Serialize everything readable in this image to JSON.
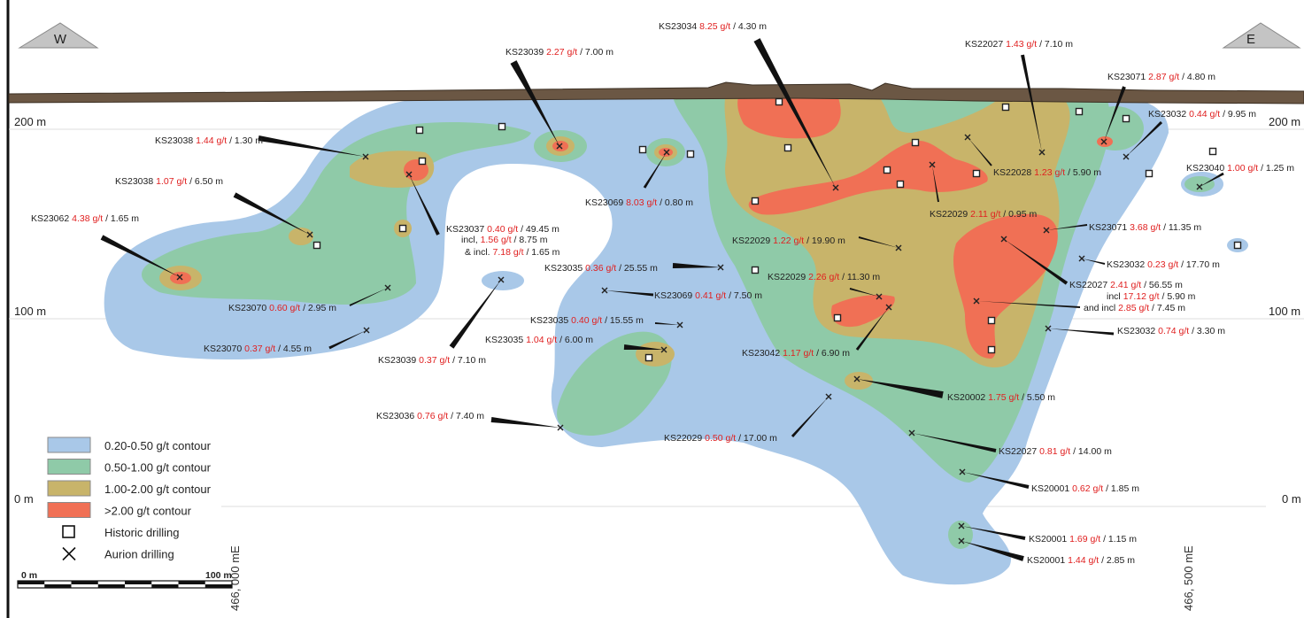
{
  "direction": {
    "west": "W",
    "east": "E"
  },
  "elevation_labels": {
    "top": "200 m",
    "mid": "100 m",
    "bottom": "0 m"
  },
  "eastings": {
    "left": "466, 000 mE",
    "right": "466, 500 mE"
  },
  "scale_bar": {
    "start": "0 m",
    "end": "100 m"
  },
  "legend": [
    {
      "label": "0.20-0.50 g/t contour",
      "color": "#a9c8e8",
      "kind": "swatch"
    },
    {
      "label": "0.50-1.00 g/t contour",
      "color": "#8fcaa8",
      "kind": "swatch"
    },
    {
      "label": "1.00-2.00 g/t contour",
      "color": "#c8b46a",
      "kind": "swatch"
    },
    {
      "label": ">2.00 g/t contour",
      "color": "#f07055",
      "kind": "swatch"
    },
    {
      "label": "Historic drilling",
      "color": "",
      "kind": "square"
    },
    {
      "label": "Aurion drilling",
      "color": "",
      "kind": "cross"
    }
  ],
  "colors": {
    "grade": "#e02020",
    "text": "#222222",
    "surface": "#6b5744",
    "blue": "#a9c8e8",
    "green": "#8fcaa8",
    "yellow": "#c8b46a",
    "red": "#f07055"
  },
  "intercepts": [
    {
      "hole": "KS23034",
      "grade": "8.25 g/t",
      "width": "/ 4.30 m"
    },
    {
      "hole": "KS22027",
      "grade": "1.43 g/t",
      "width": "/ 7.10 m"
    },
    {
      "hole": "KS23039",
      "grade": "2.27 g/t",
      "width": "/ 7.00 m"
    },
    {
      "hole": "KS23071",
      "grade": "2.87 g/t",
      "width": "/ 4.80 m"
    },
    {
      "hole": "KS23032",
      "grade": "0.44 g/t",
      "width": "/ 9.95 m"
    },
    {
      "hole": "KS23038",
      "grade": "1.44 g/t",
      "width": "/ 1.30 m"
    },
    {
      "hole": "KS22028",
      "grade": "1.23 g/t",
      "width": "/ 5.90 m"
    },
    {
      "hole": "KS23040",
      "grade": "1.00 g/t",
      "width": "/ 1.25 m"
    },
    {
      "hole": "KS23038",
      "grade": "1.07 g/t",
      "width": "/ 6.50 m"
    },
    {
      "hole": "KS23069",
      "grade": "8.03 g/t",
      "width": "/ 0.80 m"
    },
    {
      "hole": "KS22029",
      "grade": "2.11 g/t",
      "width": "/ 0.95 m"
    },
    {
      "hole": "KS23062",
      "grade": "4.38 g/t",
      "width": "/ 1.65 m"
    },
    {
      "hole": "KS23037",
      "grade": "0.40 g/t",
      "width": "/ 49.45 m"
    },
    {
      "hole": "incl,",
      "grade": "1.56 g/t",
      "width": "/ 8.75 m"
    },
    {
      "hole": "& incl.",
      "grade": "7.18 g/t",
      "width": "/ 1.65 m"
    },
    {
      "hole": "KS22029",
      "grade": "1.22 g/t",
      "width": "/ 19.90 m"
    },
    {
      "hole": "KS23071",
      "grade": "3.68 g/t",
      "width": "/ 11.35 m"
    },
    {
      "hole": "KS23032",
      "grade": "0.23 g/t",
      "width": "/ 17.70 m"
    },
    {
      "hole": "KS23035",
      "grade": "0.36 g/t",
      "width": "/ 25.55 m"
    },
    {
      "hole": "KS22029",
      "grade": "2.26 g/t",
      "width": "/ 11.30 m"
    },
    {
      "hole": "KS22027",
      "grade": "2.41 g/t",
      "width": "/ 56.55 m"
    },
    {
      "hole": "incl",
      "grade": "17.12 g/t",
      "width": "/ 5.90 m"
    },
    {
      "hole": "and incl",
      "grade": "2.85 g/t",
      "width": "/ 7.45 m"
    },
    {
      "hole": "KS23070",
      "grade": "0.60 g/t",
      "width": "/ 2.95 m"
    },
    {
      "hole": "KS23069",
      "grade": "0.41 g/t",
      "width": "/ 7.50 m"
    },
    {
      "hole": "KS23035",
      "grade": "0.40 g/t",
      "width": "/ 15.55 m"
    },
    {
      "hole": "KS23032",
      "grade": "0.74 g/t",
      "width": "/ 3.30 m"
    },
    {
      "hole": "KS23035",
      "grade": "1.04 g/t",
      "width": "/ 6.00 m"
    },
    {
      "hole": "KS23070",
      "grade": "0.37 g/t",
      "width": "/ 4.55 m"
    },
    {
      "hole": "KS23042",
      "grade": "1.17 g/t",
      "width": "/ 6.90 m"
    },
    {
      "hole": "KS23039",
      "grade": "0.37 g/t",
      "width": "/ 7.10 m"
    },
    {
      "hole": "KS20002",
      "grade": "1.75 g/t",
      "width": "/ 5.50 m"
    },
    {
      "hole": "KS23036",
      "grade": "0.76 g/t",
      "width": "/ 7.40 m"
    },
    {
      "hole": "KS22029",
      "grade": "0.50 g/t",
      "width": "/ 17.00 m"
    },
    {
      "hole": "KS22027",
      "grade": "0.81 g/t",
      "width": "/ 14.00 m"
    },
    {
      "hole": "KS20001",
      "grade": "0.62 g/t",
      "width": "/ 1.85 m"
    },
    {
      "hole": "KS20001",
      "grade": "1.69 g/t",
      "width": "/ 1.15 m"
    },
    {
      "hole": "KS20001",
      "grade": "1.44 g/t",
      "width": "/ 2.85 m"
    }
  ]
}
